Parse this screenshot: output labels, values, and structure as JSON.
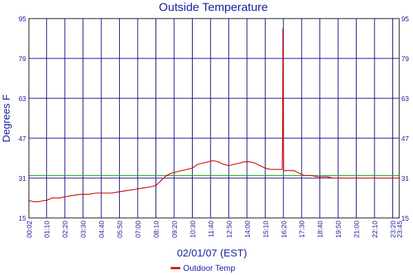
{
  "chart_data": {
    "type": "line",
    "title": "Outside Temperature",
    "xlabel": "02/01/07 (EST)",
    "ylabel": "Degrees F",
    "ylim": [
      15,
      95
    ],
    "yticks": [
      15,
      31,
      47,
      63,
      79,
      95
    ],
    "xlim": [
      "00:02",
      "23:45"
    ],
    "xticks": [
      "00:02",
      "01:10",
      "02:20",
      "03:30",
      "04:40",
      "05:50",
      "07:00",
      "08:10",
      "09:20",
      "10:30",
      "11:40",
      "12:50",
      "14:00",
      "15:10",
      "16:20",
      "17:30",
      "18:40",
      "19:50",
      "21:00",
      "22:10",
      "23:20",
      "23:45"
    ],
    "grid": true,
    "legend": "bottom-center",
    "reference_line": {
      "y": 32,
      "color": "#22aa22"
    },
    "colors": {
      "axis": "#1b1f9e",
      "grid": "#000080",
      "series": "#cc0000",
      "reference": "#22aa22"
    },
    "series": [
      {
        "name": "Outdoor Temp",
        "color": "#cc0000",
        "x": [
          "00:02",
          "00:20",
          "00:40",
          "01:00",
          "01:10",
          "01:30",
          "02:00",
          "02:20",
          "02:50",
          "03:20",
          "03:50",
          "04:20",
          "04:50",
          "05:20",
          "05:50",
          "06:20",
          "06:50",
          "07:20",
          "07:50",
          "08:10",
          "08:30",
          "08:50",
          "09:10",
          "09:30",
          "09:50",
          "10:10",
          "10:30",
          "10:50",
          "11:10",
          "11:30",
          "11:50",
          "12:10",
          "12:30",
          "12:50",
          "13:10",
          "13:30",
          "13:50",
          "14:10",
          "14:30",
          "14:50",
          "15:10",
          "15:30",
          "15:50",
          "16:05",
          "16:15",
          "16:17",
          "16:18",
          "16:19",
          "16:20",
          "16:21",
          "16:22",
          "16:24",
          "16:40",
          "17:00",
          "17:10",
          "17:20",
          "17:40",
          "18:10",
          "18:30",
          "18:50",
          "19:10",
          "19:30",
          "19:50",
          "20:30",
          "21:00",
          "21:40",
          "22:10",
          "22:40",
          "23:00",
          "23:20",
          "23:45"
        ],
        "values": [
          22,
          21.5,
          21.5,
          22,
          22,
          23,
          23,
          23.5,
          24,
          24.5,
          24.5,
          25,
          25,
          25,
          25.5,
          26,
          26.5,
          27,
          27.5,
          28,
          30,
          32,
          33,
          33.5,
          34,
          34.5,
          35,
          36.5,
          37,
          37.5,
          38,
          37.5,
          36.5,
          36,
          36.5,
          37,
          37.5,
          37.5,
          37,
          36,
          35,
          34.5,
          34.5,
          34.5,
          34.5,
          48,
          91,
          76,
          48,
          34,
          34,
          34,
          34,
          34,
          33.5,
          33,
          32,
          32,
          31.5,
          31.5,
          31.5,
          31,
          31,
          31,
          31,
          31,
          31,
          31,
          31,
          31,
          31
        ]
      }
    ]
  }
}
